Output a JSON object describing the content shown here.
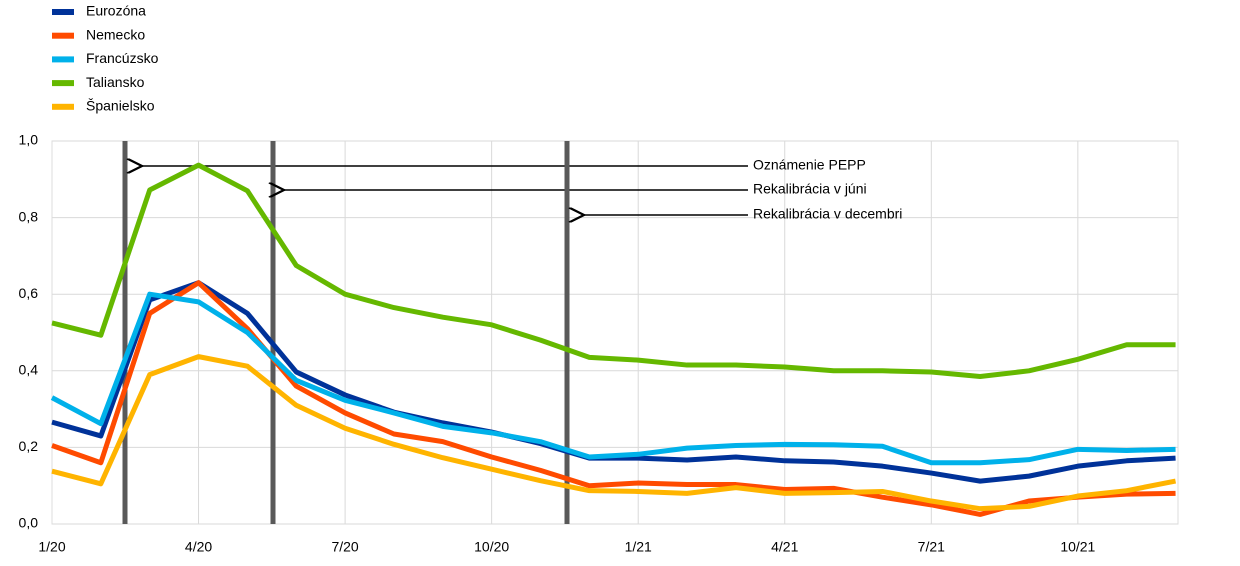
{
  "chart_data": {
    "type": "line",
    "categories": [
      "1/20",
      null,
      null,
      "4/20",
      null,
      null,
      "7/20",
      null,
      null,
      "10/20",
      null,
      null,
      "1/21",
      null,
      null,
      "4/21",
      null,
      null,
      "7/21",
      null,
      null,
      "10/21",
      null,
      null
    ],
    "series": [
      {
        "name": "Eurozóna",
        "color": "#003299",
        "values": [
          0.266,
          0.23,
          0.585,
          0.63,
          0.55,
          0.397,
          0.337,
          0.292,
          0.264,
          0.24,
          0.21,
          0.172,
          0.172,
          0.167,
          0.175,
          0.165,
          0.162,
          0.151,
          0.133,
          0.112,
          0.125,
          0.151,
          0.165,
          0.172
        ]
      },
      {
        "name": "Nemecko",
        "color": "#ff4b00",
        "values": [
          0.205,
          0.16,
          0.55,
          0.63,
          0.51,
          0.36,
          0.29,
          0.235,
          0.215,
          0.175,
          0.14,
          0.1,
          0.107,
          0.103,
          0.103,
          0.09,
          0.093,
          0.07,
          0.05,
          0.025,
          0.06,
          0.07,
          0.078,
          0.08
        ]
      },
      {
        "name": "Francúzsko",
        "color": "#00b1ea",
        "values": [
          0.33,
          0.262,
          0.6,
          0.58,
          0.5,
          0.375,
          0.323,
          0.29,
          0.255,
          0.238,
          0.215,
          0.175,
          0.182,
          0.198,
          0.205,
          0.208,
          0.207,
          0.203,
          0.16,
          0.16,
          0.168,
          0.195,
          0.192,
          0.195
        ]
      },
      {
        "name": "Taliansko",
        "color": "#65b800",
        "values": [
          0.525,
          0.493,
          0.872,
          0.937,
          0.87,
          0.675,
          0.6,
          0.565,
          0.54,
          0.52,
          0.48,
          0.435,
          0.428,
          0.415,
          0.415,
          0.41,
          0.4,
          0.4,
          0.397,
          0.385,
          0.4,
          0.43,
          0.468,
          0.468
        ]
      },
      {
        "name": "Španielsko",
        "color": "#ffb400",
        "values": [
          0.138,
          0.105,
          0.39,
          0.437,
          0.412,
          0.31,
          0.25,
          0.208,
          0.173,
          0.143,
          0.113,
          0.087,
          0.085,
          0.08,
          0.095,
          0.08,
          0.082,
          0.085,
          0.06,
          0.04,
          0.046,
          0.073,
          0.087,
          0.112
        ]
      }
    ],
    "ylim": [
      0,
      1
    ],
    "yticks": [
      {
        "value": 0,
        "label": "0,0"
      },
      {
        "value": 0.2,
        "label": "0,2"
      },
      {
        "value": 0.4,
        "label": "0,4"
      },
      {
        "value": 0.6,
        "label": "0,6"
      },
      {
        "value": 0.8,
        "label": "0,8"
      },
      {
        "value": 1,
        "label": "1,0"
      }
    ],
    "grid": true,
    "legend": "top-left",
    "annotations": [
      "Oznámenie PEPP",
      "Rekalibrácia v júni",
      "Rekalibrácia v decembri"
    ]
  }
}
